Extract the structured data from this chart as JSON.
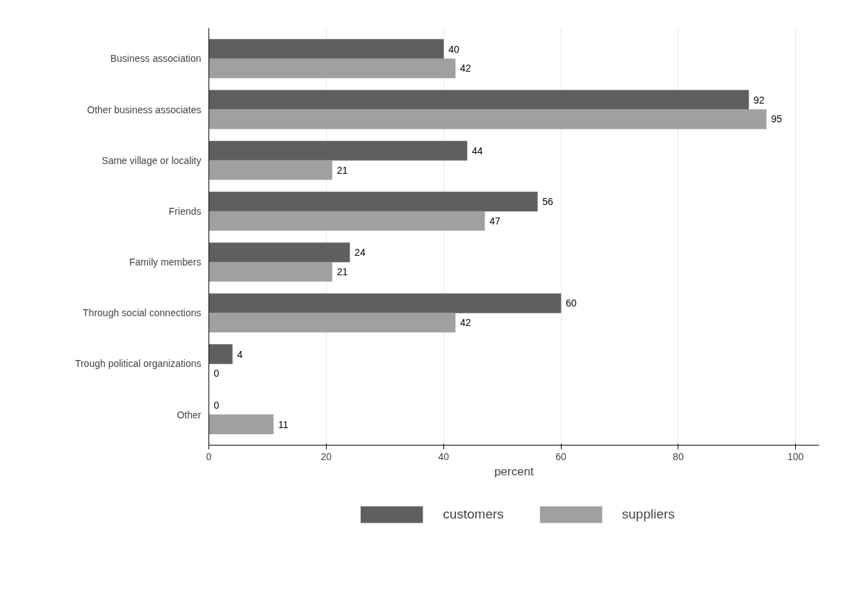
{
  "chart_data": {
    "type": "bar",
    "orientation": "horizontal",
    "xlabel": "percent",
    "categories": [
      "Business association",
      "Other business associates",
      "Same village or locality",
      "Friends",
      "Family members",
      "Through social connections",
      "Trough political organizations",
      "Other"
    ],
    "series": [
      {
        "name": "customers",
        "color": "#5f5f5f",
        "values": [
          40,
          92,
          44,
          56,
          24,
          60,
          4,
          0
        ]
      },
      {
        "name": "suppliers",
        "color": "#a0a0a0",
        "values": [
          42,
          95,
          21,
          47,
          21,
          42,
          0,
          11
        ]
      }
    ],
    "xlim": [
      0,
      104
    ],
    "xticks": [
      0,
      20,
      40,
      60,
      80,
      100
    ],
    "grid": "x",
    "legend": "bottom",
    "data_labels": true
  }
}
